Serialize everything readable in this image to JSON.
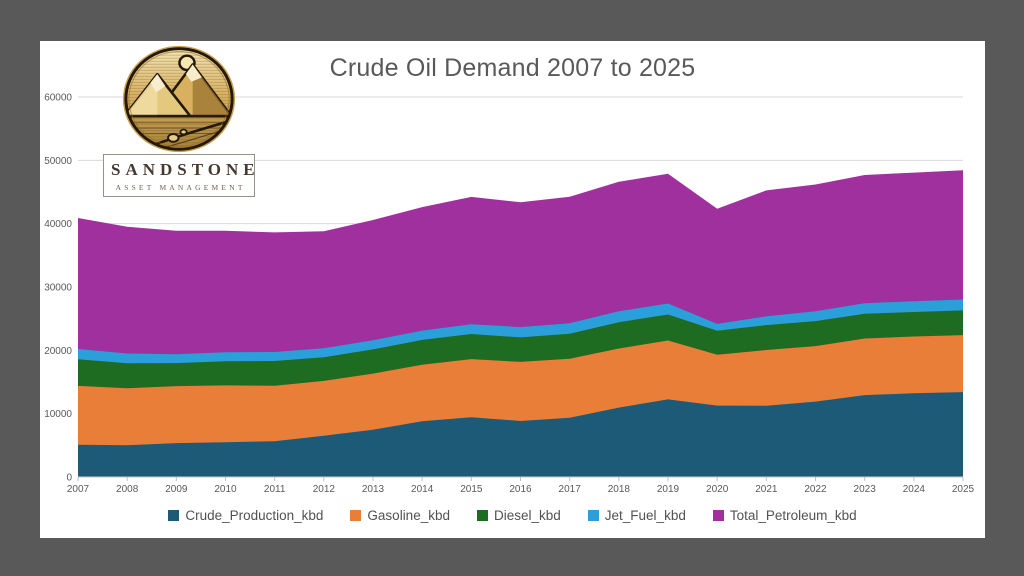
{
  "frame": {
    "background": "#595959",
    "panel_background": "#FFFFFF"
  },
  "logo": {
    "brand": "SANDSTONE",
    "tagline": "ASSET MANAGEMENT",
    "gold": "#C9A050",
    "gold_light": "#F1DFAE",
    "outline": "#241806"
  },
  "chart_data": {
    "type": "area",
    "stacked": true,
    "title": "Crude Oil Demand 2007 to 2025",
    "title_color": "#595959",
    "xlabel": "",
    "ylabel": "",
    "ylim": [
      0,
      60000
    ],
    "ytick_step": 10000,
    "yticks": [
      "0",
      "10000",
      "20000",
      "30000",
      "40000",
      "50000",
      "60000"
    ],
    "grid": true,
    "gridline_color": "#D9D9D9",
    "axis_label_color": "#595959",
    "legend_position": "bottom",
    "x": [
      2007,
      2008,
      2009,
      2010,
      2011,
      2012,
      2013,
      2014,
      2015,
      2016,
      2017,
      2018,
      2019,
      2020,
      2021,
      2022,
      2023,
      2024,
      2025
    ],
    "series": [
      {
        "name": "Crude_Production_kbd",
        "color": "#1C5A77",
        "values": [
          5100,
          5000,
          5350,
          5480,
          5660,
          6500,
          7470,
          8790,
          9440,
          8840,
          9350,
          10960,
          12250,
          11280,
          11250,
          11910,
          12930,
          13210,
          13400
        ]
      },
      {
        "name": "Gasoline_kbd",
        "color": "#E87E38",
        "values": [
          9290,
          9000,
          9000,
          8990,
          8750,
          8680,
          8850,
          8920,
          9180,
          9330,
          9330,
          9330,
          9310,
          8030,
          8800,
          8760,
          8940,
          8970,
          9000
        ]
      },
      {
        "name": "Diesel_kbd",
        "color": "#1E6B22",
        "values": [
          4200,
          3960,
          3630,
          3800,
          3900,
          3740,
          3830,
          3930,
          3960,
          3880,
          3930,
          4150,
          4100,
          3780,
          3940,
          3950,
          3910,
          3880,
          3900
        ]
      },
      {
        "name": "Jet_Fuel_kbd",
        "color": "#2B9FD9",
        "values": [
          1620,
          1540,
          1390,
          1430,
          1430,
          1400,
          1430,
          1470,
          1540,
          1620,
          1680,
          1720,
          1740,
          1080,
          1370,
          1560,
          1660,
          1700,
          1720
        ]
      },
      {
        "name": "Total_Petroleum_kbd",
        "color": "#A0309E",
        "values": [
          20680,
          20000,
          19500,
          19180,
          18880,
          18490,
          19000,
          19500,
          20100,
          19700,
          19960,
          20460,
          20470,
          18190,
          19890,
          20010,
          20250,
          20300,
          20400
        ]
      }
    ]
  }
}
